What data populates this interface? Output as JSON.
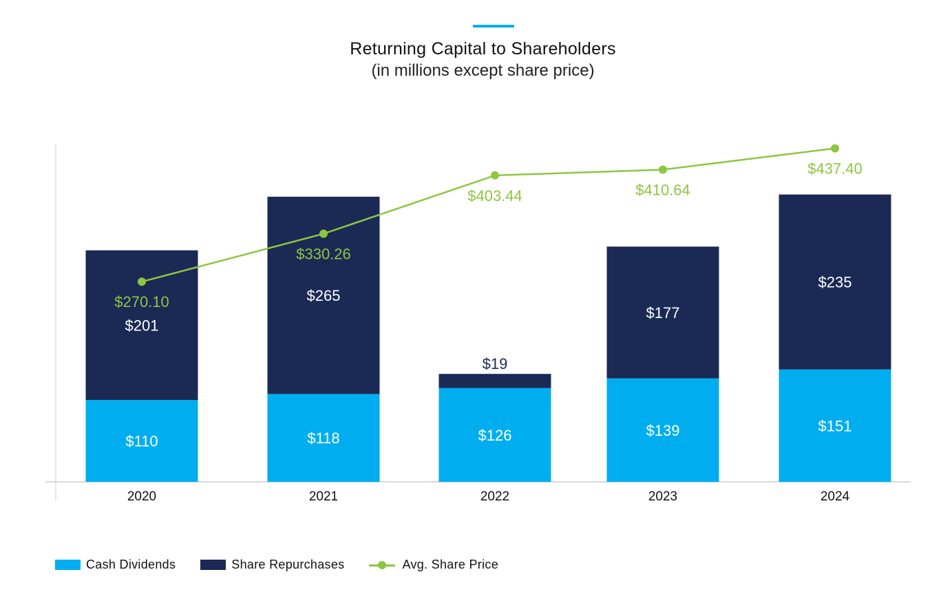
{
  "chart_data": {
    "type": "bar",
    "stacked": true,
    "title": "Returning Capital to Shareholders",
    "subtitle": "(in millions except share price)",
    "categories": [
      "2020",
      "2021",
      "2022",
      "2023",
      "2024"
    ],
    "series": [
      {
        "name": "Cash Dividends",
        "type": "bar",
        "color": "#00aeef",
        "values": [
          110,
          118,
          126,
          139,
          151
        ],
        "labels": [
          "$110",
          "$118",
          "$126",
          "$139",
          "$151"
        ]
      },
      {
        "name": "Share Repurchases",
        "type": "bar",
        "color": "#1b2955",
        "values": [
          201,
          265,
          19,
          177,
          235
        ],
        "labels": [
          "$201",
          "$265",
          "$19",
          "$177",
          "$235"
        ]
      },
      {
        "name": "Avg. Share Price",
        "type": "line",
        "color": "#8dc63f",
        "values": [
          270.1,
          330.26,
          403.44,
          410.64,
          437.4
        ],
        "labels": [
          "$270.10",
          "$330.26",
          "$403.44",
          "$410.64",
          "$437.40"
        ]
      }
    ],
    "ylim": [
      0,
      454
    ],
    "y2lim": [
      19,
      443
    ],
    "grid": false,
    "legend": "bottom-left"
  }
}
